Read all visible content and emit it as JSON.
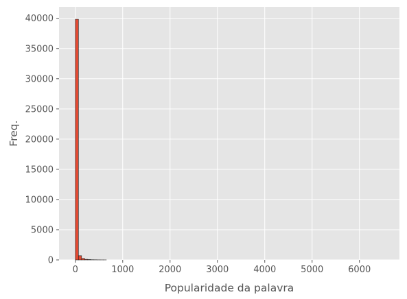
{
  "chart_data": {
    "type": "bar",
    "style": "histogram",
    "title": "",
    "xlabel": "Popularidade da palavra",
    "ylabel": "Freq.",
    "xlim": [
      -345,
      6845
    ],
    "ylim": [
      0,
      41900
    ],
    "xticks": [
      0,
      1000,
      2000,
      3000,
      4000,
      5000,
      6000
    ],
    "yticks": [
      0,
      5000,
      10000,
      15000,
      20000,
      25000,
      30000,
      35000,
      40000
    ],
    "grid": true,
    "bin_width": 65.5,
    "bin_start": 0,
    "values": [
      39850,
      700,
      250,
      100,
      60,
      30,
      20,
      10,
      5,
      3
    ],
    "colors": {
      "plot_background": "#e5e5e5",
      "grid": "#ffffff",
      "bar_fill": "#e24a33",
      "bar_edge": "#222222"
    }
  }
}
